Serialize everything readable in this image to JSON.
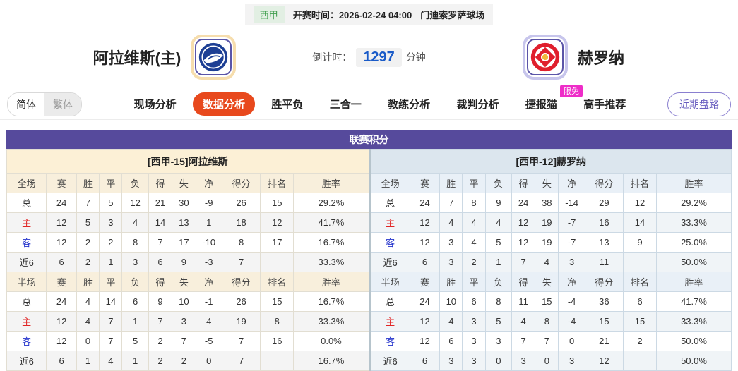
{
  "top_bar": {
    "league_badge": "西甲",
    "kickoff_label": "开赛时间：",
    "kickoff_time": "2026-02-24 04:00",
    "venue": "门迪索罗萨球场"
  },
  "match_header": {
    "home_team": "阿拉维斯(主)",
    "away_team": "赫罗纳",
    "countdown_label": "倒计时：",
    "countdown_value": "1297",
    "countdown_unit": "分钟"
  },
  "nav": {
    "lang_simplified": "简体",
    "lang_traditional": "繁体",
    "items": [
      {
        "label": "现场分析",
        "name": "live-analysis"
      },
      {
        "label": "数据分析",
        "name": "data-analysis"
      },
      {
        "label": "胜平负",
        "name": "win-draw-loss"
      },
      {
        "label": "三合一",
        "name": "three-in-one"
      },
      {
        "label": "教练分析",
        "name": "coach-analysis"
      },
      {
        "label": "裁判分析",
        "name": "referee-analysis"
      },
      {
        "label": "捷报猫",
        "name": "jiebao-cat"
      },
      {
        "label": "高手推荐",
        "name": "expert-picks"
      }
    ],
    "active_item": "数据分析",
    "limited_badge": "限免",
    "limited_badge_on": "捷报猫",
    "recent_button": "近期盘路"
  },
  "table": {
    "title": "联赛积分",
    "home": {
      "subtitle": "[西甲-15]阿拉维斯",
      "full_header": [
        "全场",
        "赛",
        "胜",
        "平",
        "负",
        "得",
        "失",
        "净",
        "得分",
        "排名",
        "胜率"
      ],
      "full_rows": [
        [
          "总",
          "24",
          "7",
          "5",
          "12",
          "21",
          "30",
          "-9",
          "26",
          "15",
          "29.2%"
        ],
        [
          "主",
          "12",
          "5",
          "3",
          "4",
          "14",
          "13",
          "1",
          "18",
          "12",
          "41.7%"
        ],
        [
          "客",
          "12",
          "2",
          "2",
          "8",
          "7",
          "17",
          "-10",
          "8",
          "17",
          "16.7%"
        ],
        [
          "近6",
          "6",
          "2",
          "1",
          "3",
          "6",
          "9",
          "-3",
          "7",
          "",
          "33.3%"
        ]
      ],
      "half_header": [
        "半场",
        "赛",
        "胜",
        "平",
        "负",
        "得",
        "失",
        "净",
        "得分",
        "排名",
        "胜率"
      ],
      "half_rows": [
        [
          "总",
          "24",
          "4",
          "14",
          "6",
          "9",
          "10",
          "-1",
          "26",
          "15",
          "16.7%"
        ],
        [
          "主",
          "12",
          "4",
          "7",
          "1",
          "7",
          "3",
          "4",
          "19",
          "8",
          "33.3%"
        ],
        [
          "客",
          "12",
          "0",
          "7",
          "5",
          "2",
          "7",
          "-5",
          "7",
          "16",
          "0.0%"
        ],
        [
          "近6",
          "6",
          "1",
          "4",
          "1",
          "2",
          "2",
          "0",
          "7",
          "",
          "16.7%"
        ]
      ]
    },
    "away": {
      "subtitle": "[西甲-12]赫罗纳",
      "full_header": [
        "全场",
        "赛",
        "胜",
        "平",
        "负",
        "得",
        "失",
        "净",
        "得分",
        "排名",
        "胜率"
      ],
      "full_rows": [
        [
          "总",
          "24",
          "7",
          "8",
          "9",
          "24",
          "38",
          "-14",
          "29",
          "12",
          "29.2%"
        ],
        [
          "主",
          "12",
          "4",
          "4",
          "4",
          "12",
          "19",
          "-7",
          "16",
          "14",
          "33.3%"
        ],
        [
          "客",
          "12",
          "3",
          "4",
          "5",
          "12",
          "19",
          "-7",
          "13",
          "9",
          "25.0%"
        ],
        [
          "近6",
          "6",
          "3",
          "2",
          "1",
          "7",
          "4",
          "3",
          "11",
          "",
          "50.0%"
        ]
      ],
      "half_header": [
        "半场",
        "赛",
        "胜",
        "平",
        "负",
        "得",
        "失",
        "净",
        "得分",
        "排名",
        "胜率"
      ],
      "half_rows": [
        [
          "总",
          "24",
          "10",
          "6",
          "8",
          "11",
          "15",
          "-4",
          "36",
          "6",
          "41.7%"
        ],
        [
          "主",
          "12",
          "4",
          "3",
          "5",
          "4",
          "8",
          "-4",
          "15",
          "15",
          "33.3%"
        ],
        [
          "客",
          "12",
          "6",
          "3",
          "3",
          "7",
          "7",
          "0",
          "21",
          "2",
          "50.0%"
        ],
        [
          "近6",
          "6",
          "3",
          "3",
          "0",
          "3",
          "0",
          "3",
          "12",
          "",
          "50.0%"
        ]
      ]
    }
  },
  "icons": {
    "home_logo": "alaves-crest-icon",
    "away_logo": "girona-crest-icon"
  },
  "colors": {
    "purple_header": "#564a9c",
    "active_tab": "#e8491d",
    "limited_badge": "#ee2cc8",
    "countdown_blue": "#1a5bc8",
    "home_row_red": "#e02626",
    "away_row_blue": "#2433cc",
    "league_green": "#3f9e4d"
  }
}
